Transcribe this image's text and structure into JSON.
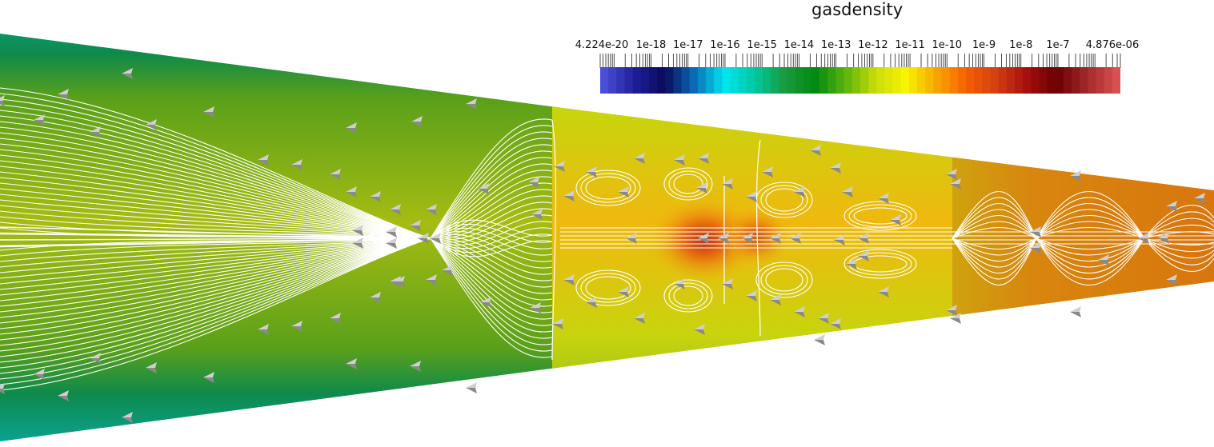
{
  "scalar_bar": {
    "title": "gasdensity",
    "range_min": 4.224e-20,
    "range_max": 4.876e-06,
    "scale": "log",
    "labels": [
      "4.224e-20",
      "1e-18",
      "1e-17",
      "1e-16",
      "1e-15",
      "1e-14",
      "1e-13",
      "1e-12",
      "1e-11",
      "1e-10",
      "1e-9",
      "1e-8",
      "1e-7",
      "4.876e-06"
    ],
    "colormap": [
      "#4b4fd8",
      "#1e1f9a",
      "#0a0a5a",
      "#0a6db8",
      "#00e6f0",
      "#00c8a0",
      "#1a9a3c",
      "#008a10",
      "#5ab40a",
      "#c8dc0a",
      "#f8f400",
      "#f8a800",
      "#f86000",
      "#d24010",
      "#a81010",
      "#6a0000",
      "#a02828",
      "#d85050"
    ]
  },
  "scene": {
    "background": "#ffffff",
    "field_colors": {
      "outer_band": "#0e8a4a",
      "outer_edge": "#0aa49a",
      "inner_left": "#9ab60e",
      "middle": "#a6bc12",
      "hot_core": "#c83c10",
      "right_section": "#d08a10",
      "far_right": "#d8760e"
    },
    "streamline_color": "#ffffff",
    "glyph_color": "#a8a8a8"
  }
}
